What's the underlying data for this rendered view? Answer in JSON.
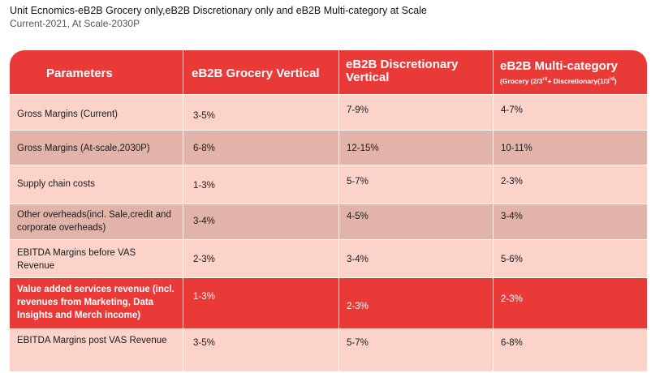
{
  "title": "Unit Ecnomics-eB2B Grocery only,eB2B Discretionary only and eB2B Multi-category at Scale",
  "subtitle": "Current-2021, At Scale-2030P",
  "colors": {
    "header": "#ea3a38",
    "row_light": "#fbd3c9",
    "row_dark": "#e2b4a9",
    "highlight": "#ea3a38"
  },
  "headers": {
    "parameters": "Parameters",
    "grocery": "eB2B Grocery Vertical",
    "discretionary": "eB2B Discretionary Vertical",
    "multi": "eB2B Multi-category",
    "multi_sub_a": "(Grocery (2/3",
    "multi_sub_a_sup": "rd",
    "multi_sub_b": "+ Discretionary(1/3",
    "multi_sub_b_sup": "rd",
    "multi_sub_c": ")"
  },
  "rows": [
    {
      "param": "Gross Margins (Current)",
      "grocery": "3-5%",
      "discretionary": "7-9%",
      "multi": "4-7%"
    },
    {
      "param": "Gross Margins (At-scale,2030P)",
      "grocery": "6-8%",
      "discretionary": "12-15%",
      "multi": "10-11%"
    },
    {
      "param": "Supply chain costs",
      "grocery": "1-3%",
      "discretionary": "5-7%",
      "multi": "2-3%"
    },
    {
      "param": "Other overheads(incl. Sale,credit and corporate overheads)",
      "grocery": "3-4%",
      "discretionary": "4-5%",
      "multi": "3-4%"
    },
    {
      "param": "EBITDA Margins before VAS Revenue",
      "grocery": "2-3%",
      "discretionary": "3-4%",
      "multi": "5-6%"
    },
    {
      "param": "Value added services revenue (incl. revenues from Marketing, Data Insights and Merch income)",
      "grocery": "1-3%",
      "discretionary": "2-3%",
      "multi": "2-3%"
    },
    {
      "param": "EBITDA Margins post VAS Revenue",
      "grocery": "3-5%",
      "discretionary": "5-7%",
      "multi": "6-8%"
    }
  ]
}
